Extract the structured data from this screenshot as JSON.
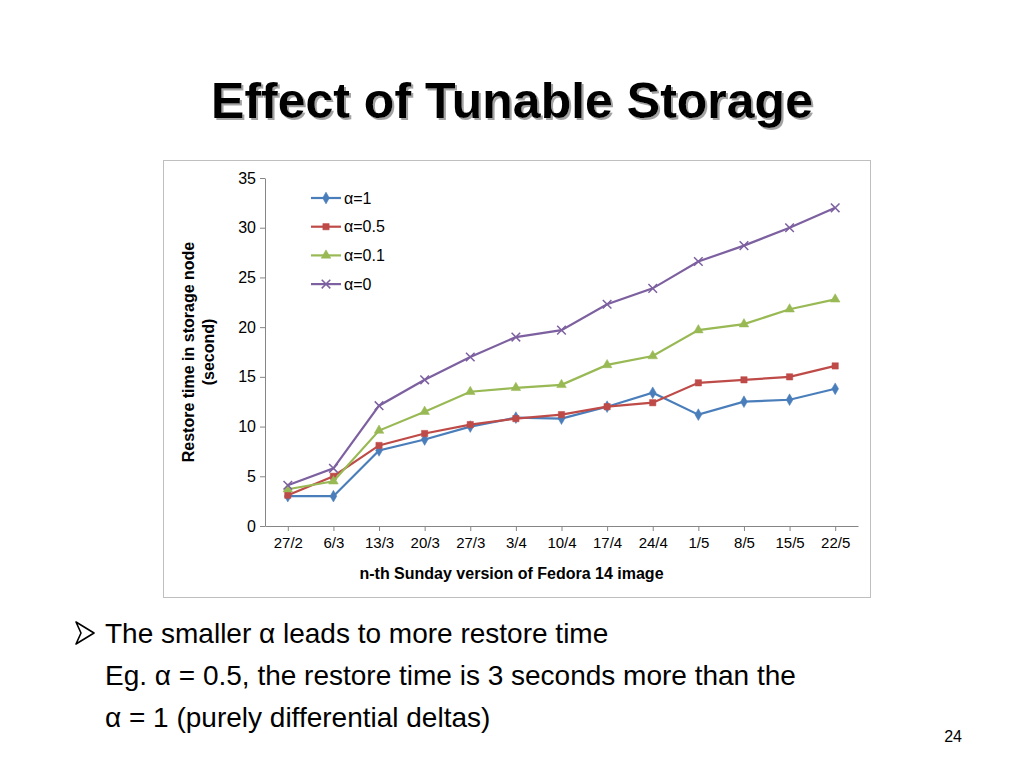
{
  "slide": {
    "title": "Effect of Tunable Storage",
    "bullet_lines": [
      "The smaller α leads to more restore time",
      "Eg. α = 0.5, the restore time is 3 seconds more than the",
      "α = 1 (purely differential deltas)"
    ],
    "page_number": "24"
  },
  "chart_data": {
    "type": "line",
    "categories": [
      "27/2",
      "6/3",
      "13/3",
      "20/3",
      "27/3",
      "3/4",
      "10/4",
      "17/4",
      "24/4",
      "1/5",
      "8/5",
      "15/5",
      "22/5"
    ],
    "series": [
      {
        "name": "α=1",
        "color": "#4a7ebb",
        "marker": "diamond",
        "values": [
          3.0,
          3.0,
          7.6,
          8.7,
          10.0,
          10.9,
          10.8,
          12.0,
          13.4,
          11.2,
          12.5,
          12.7,
          13.8
        ]
      },
      {
        "name": "α=0.5",
        "color": "#be4b48",
        "marker": "square",
        "values": [
          3.1,
          5.0,
          8.1,
          9.3,
          10.2,
          10.8,
          11.2,
          12.0,
          12.4,
          14.4,
          14.7,
          15.0,
          16.1
        ]
      },
      {
        "name": "α=0.1",
        "color": "#98b954",
        "marker": "triangle",
        "values": [
          3.7,
          4.5,
          9.6,
          11.5,
          13.5,
          13.9,
          14.2,
          16.2,
          17.1,
          19.7,
          20.3,
          21.8,
          22.8
        ]
      },
      {
        "name": "α=0",
        "color": "#7d60a0",
        "marker": "x",
        "values": [
          4.1,
          5.8,
          12.1,
          14.7,
          17.0,
          19.0,
          19.7,
          22.3,
          23.9,
          26.6,
          28.2,
          30.0,
          32.0
        ]
      }
    ],
    "xlabel": "n-th Sunday version of Fedora 14 image",
    "ylabel": [
      "Restore time in storage node",
      "(second)"
    ],
    "ylim": [
      0,
      35
    ],
    "yticks": [
      0,
      5,
      10,
      15,
      20,
      25,
      30,
      35
    ],
    "grid": false,
    "legend": "upper left"
  }
}
